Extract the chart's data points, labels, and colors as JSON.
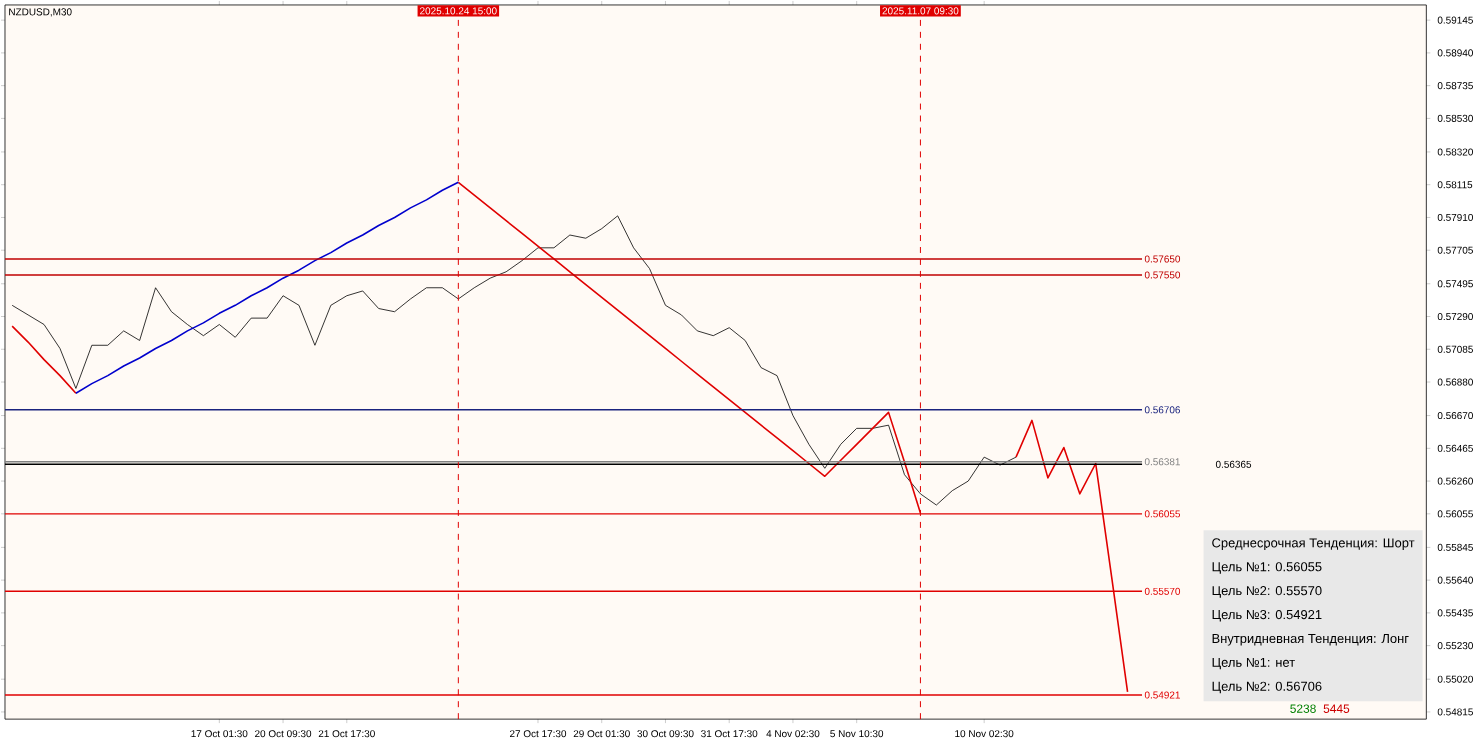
{
  "chart_data": {
    "type": "line",
    "title": "NZDUSD,M30",
    "categories": [
      null,
      null,
      null,
      null,
      null,
      null,
      null,
      null,
      null,
      null,
      null,
      null,
      null,
      "17 Oct 01:30",
      null,
      null,
      null,
      "20 Oct 09:30",
      null,
      null,
      null,
      "21 Oct 17:30",
      null,
      null,
      null,
      null,
      null,
      null,
      "2025.10.24 15:00",
      null,
      null,
      null,
      null,
      "27 Oct 17:30",
      null,
      null,
      null,
      "29 Oct 01:30",
      null,
      null,
      null,
      "30 Oct 09:30",
      null,
      null,
      null,
      "31 Oct 17:30",
      null,
      null,
      null,
      "4 Nov 02:30",
      null,
      null,
      null,
      "5 Nov 10:30",
      null,
      null,
      null,
      "2025.11.07 09:30",
      null,
      null,
      null,
      "10 Nov 02:30",
      null,
      null,
      null,
      null,
      null,
      null,
      null,
      null,
      null,
      null,
      null,
      null,
      null,
      null,
      null,
      null,
      null,
      null,
      null,
      null,
      null,
      null,
      null,
      null,
      null,
      null,
      null
    ],
    "ylim": [
      0.5477,
      0.5924
    ],
    "yticks": [
      {
        "value": 0.54815,
        "label": "0.54815"
      },
      {
        "value": 0.5502,
        "label": "0.55020"
      },
      {
        "value": 0.5523,
        "label": "0.55230"
      },
      {
        "value": 0.55435,
        "label": "0.55435"
      },
      {
        "value": 0.5564,
        "label": "0.55640"
      },
      {
        "value": 0.55845,
        "label": "0.55845"
      },
      {
        "value": 0.56055,
        "label": "0.56055"
      },
      {
        "value": 0.5626,
        "label": "0.56260"
      },
      {
        "value": 0.56465,
        "label": "0.56465"
      },
      {
        "value": 0.5667,
        "label": "0.56670"
      },
      {
        "value": 0.5688,
        "label": "0.56880"
      },
      {
        "value": 0.57085,
        "label": "0.57085"
      },
      {
        "value": 0.5729,
        "label": "0.57290"
      },
      {
        "value": 0.57495,
        "label": "0.57495"
      },
      {
        "value": 0.57705,
        "label": "0.57705"
      },
      {
        "value": 0.5791,
        "label": "0.57910"
      },
      {
        "value": 0.58115,
        "label": "0.58115"
      },
      {
        "value": 0.5832,
        "label": "0.58320"
      },
      {
        "value": 0.5853,
        "label": "0.58530"
      },
      {
        "value": 0.58735,
        "label": "0.58735"
      },
      {
        "value": 0.5894,
        "label": "0.58940"
      },
      {
        "value": 0.59145,
        "label": "0.59145"
      }
    ],
    "marker": "none",
    "line_style": "solid",
    "series": [
      {
        "color": "#000000",
        "values": [
          0.5736,
          0.573,
          0.5724,
          0.5709,
          0.5684,
          0.5711,
          0.5711,
          0.572,
          0.5714,
          0.5747,
          0.5732,
          0.5724,
          0.5717,
          0.5724,
          0.5716,
          0.5728,
          0.5728,
          0.5742,
          0.5736,
          0.5711,
          0.5736,
          0.5742,
          0.5745,
          0.5734,
          0.5732,
          0.574,
          0.5747,
          0.5747,
          0.574,
          0.5747,
          0.5753,
          0.5757,
          0.5764,
          0.5772,
          0.5772,
          0.578,
          0.5778,
          0.5784,
          0.5792,
          0.5772,
          0.5759,
          0.5736,
          0.573,
          0.572,
          0.5717,
          0.5722,
          0.5714,
          0.5697,
          0.5692,
          0.5667,
          0.5649,
          0.5634,
          0.5649,
          0.5659,
          0.5659,
          0.5661,
          0.563,
          0.5618,
          0.5611,
          0.562,
          0.5626,
          0.5641,
          0.5636,
          0.5641,
          null,
          null,
          null,
          null,
          null,
          null,
          null,
          null,
          null,
          null,
          null,
          null,
          null,
          null,
          null,
          null,
          null,
          null,
          null,
          null,
          null,
          null,
          null,
          null,
          null
        ]
      },
      {
        "color": "#e00000",
        "values": [
          0.5723,
          0.5713,
          0.5702,
          0.5692,
          0.5681,
          null,
          null,
          null,
          null,
          null,
          null,
          null,
          null,
          null,
          null,
          null,
          null,
          null,
          null,
          null,
          null,
          null,
          null,
          null,
          null,
          null,
          null,
          null,
          0.5813,
          0.5805,
          0.5797,
          0.5789,
          0.5781,
          0.5773,
          0.5765,
          0.5757,
          0.5749,
          0.5741,
          0.5733,
          0.5725,
          0.5717,
          0.5709,
          0.5701,
          0.5693,
          0.5685,
          0.5677,
          0.5669,
          0.5661,
          0.5653,
          0.5645,
          0.5637,
          0.5629,
          0.5639,
          0.5649,
          0.5659,
          0.5669,
          0.5638,
          0.5606,
          null,
          null,
          null,
          null,
          null,
          0.5641,
          0.5664,
          0.5628,
          0.5647,
          0.5618,
          0.5637,
          0.5566,
          0.5494,
          null,
          null,
          null,
          null,
          null,
          null,
          null,
          null,
          null,
          null,
          null,
          null,
          null,
          null,
          null,
          null,
          null,
          null
        ]
      },
      {
        "color": "#0000cd",
        "values": [
          null,
          null,
          null,
          null,
          0.5681,
          0.5687,
          0.5692,
          0.5698,
          0.5703,
          0.5709,
          0.5714,
          0.572,
          0.5725,
          0.5731,
          0.5736,
          0.5742,
          0.5747,
          0.5753,
          0.5758,
          0.5764,
          0.5769,
          0.5775,
          0.578,
          0.5786,
          0.5791,
          0.5797,
          0.5802,
          0.5808,
          0.5813,
          null,
          null,
          null,
          null,
          null,
          null,
          null,
          null,
          null,
          null,
          null,
          null,
          null,
          null,
          null,
          null,
          null,
          null,
          null,
          null,
          null,
          null,
          null,
          null,
          null,
          null,
          null,
          null,
          null,
          null,
          null,
          null,
          null,
          null,
          null,
          null,
          null,
          null,
          null,
          null,
          null,
          null,
          null,
          null,
          null,
          null,
          null,
          null,
          null,
          null,
          null,
          null,
          null,
          null,
          null,
          null,
          null,
          null,
          null,
          null
        ]
      }
    ],
    "ref_lines": [
      {
        "axis": "y",
        "value": 0.5765,
        "label": "0.57650",
        "color": "#c00000"
      },
      {
        "axis": "y",
        "value": 0.5755,
        "label": "0.57550",
        "color": "#c00000"
      },
      {
        "axis": "y",
        "value": 0.56706,
        "label": "0.56706",
        "color": "#1a237e"
      },
      {
        "axis": "y",
        "value": 0.56381,
        "label": "0.56381",
        "color": "#808080"
      },
      {
        "axis": "y",
        "value": 0.56365,
        "label": "0.56365",
        "color": "#000000"
      },
      {
        "axis": "y",
        "value": 0.56055,
        "label": "0.56055",
        "color": "#e00000"
      },
      {
        "axis": "y",
        "value": 0.5557,
        "label": "0.55570",
        "color": "#e00000"
      },
      {
        "axis": "y",
        "value": 0.54921,
        "label": "0.54921",
        "color": "#e00000"
      },
      {
        "axis": "x",
        "value": "2025.10.24 15:00",
        "color": "#e00000",
        "line_style": "dashed"
      },
      {
        "axis": "x",
        "value": "2025.11.07 09:30",
        "color": "#e00000",
        "line_style": "dashed"
      }
    ],
    "annotations": [
      "Среднесрочная Тенденция: Шорт",
      "Цель №1: 0.56055",
      "Цель №2: 0.55570",
      "Цель №3: 0.54921",
      "Внутридневная Тенденция: Лонг",
      "Цель №1: нет",
      "Цель №2: 0.56706",
      "5238",
      "5445"
    ]
  }
}
